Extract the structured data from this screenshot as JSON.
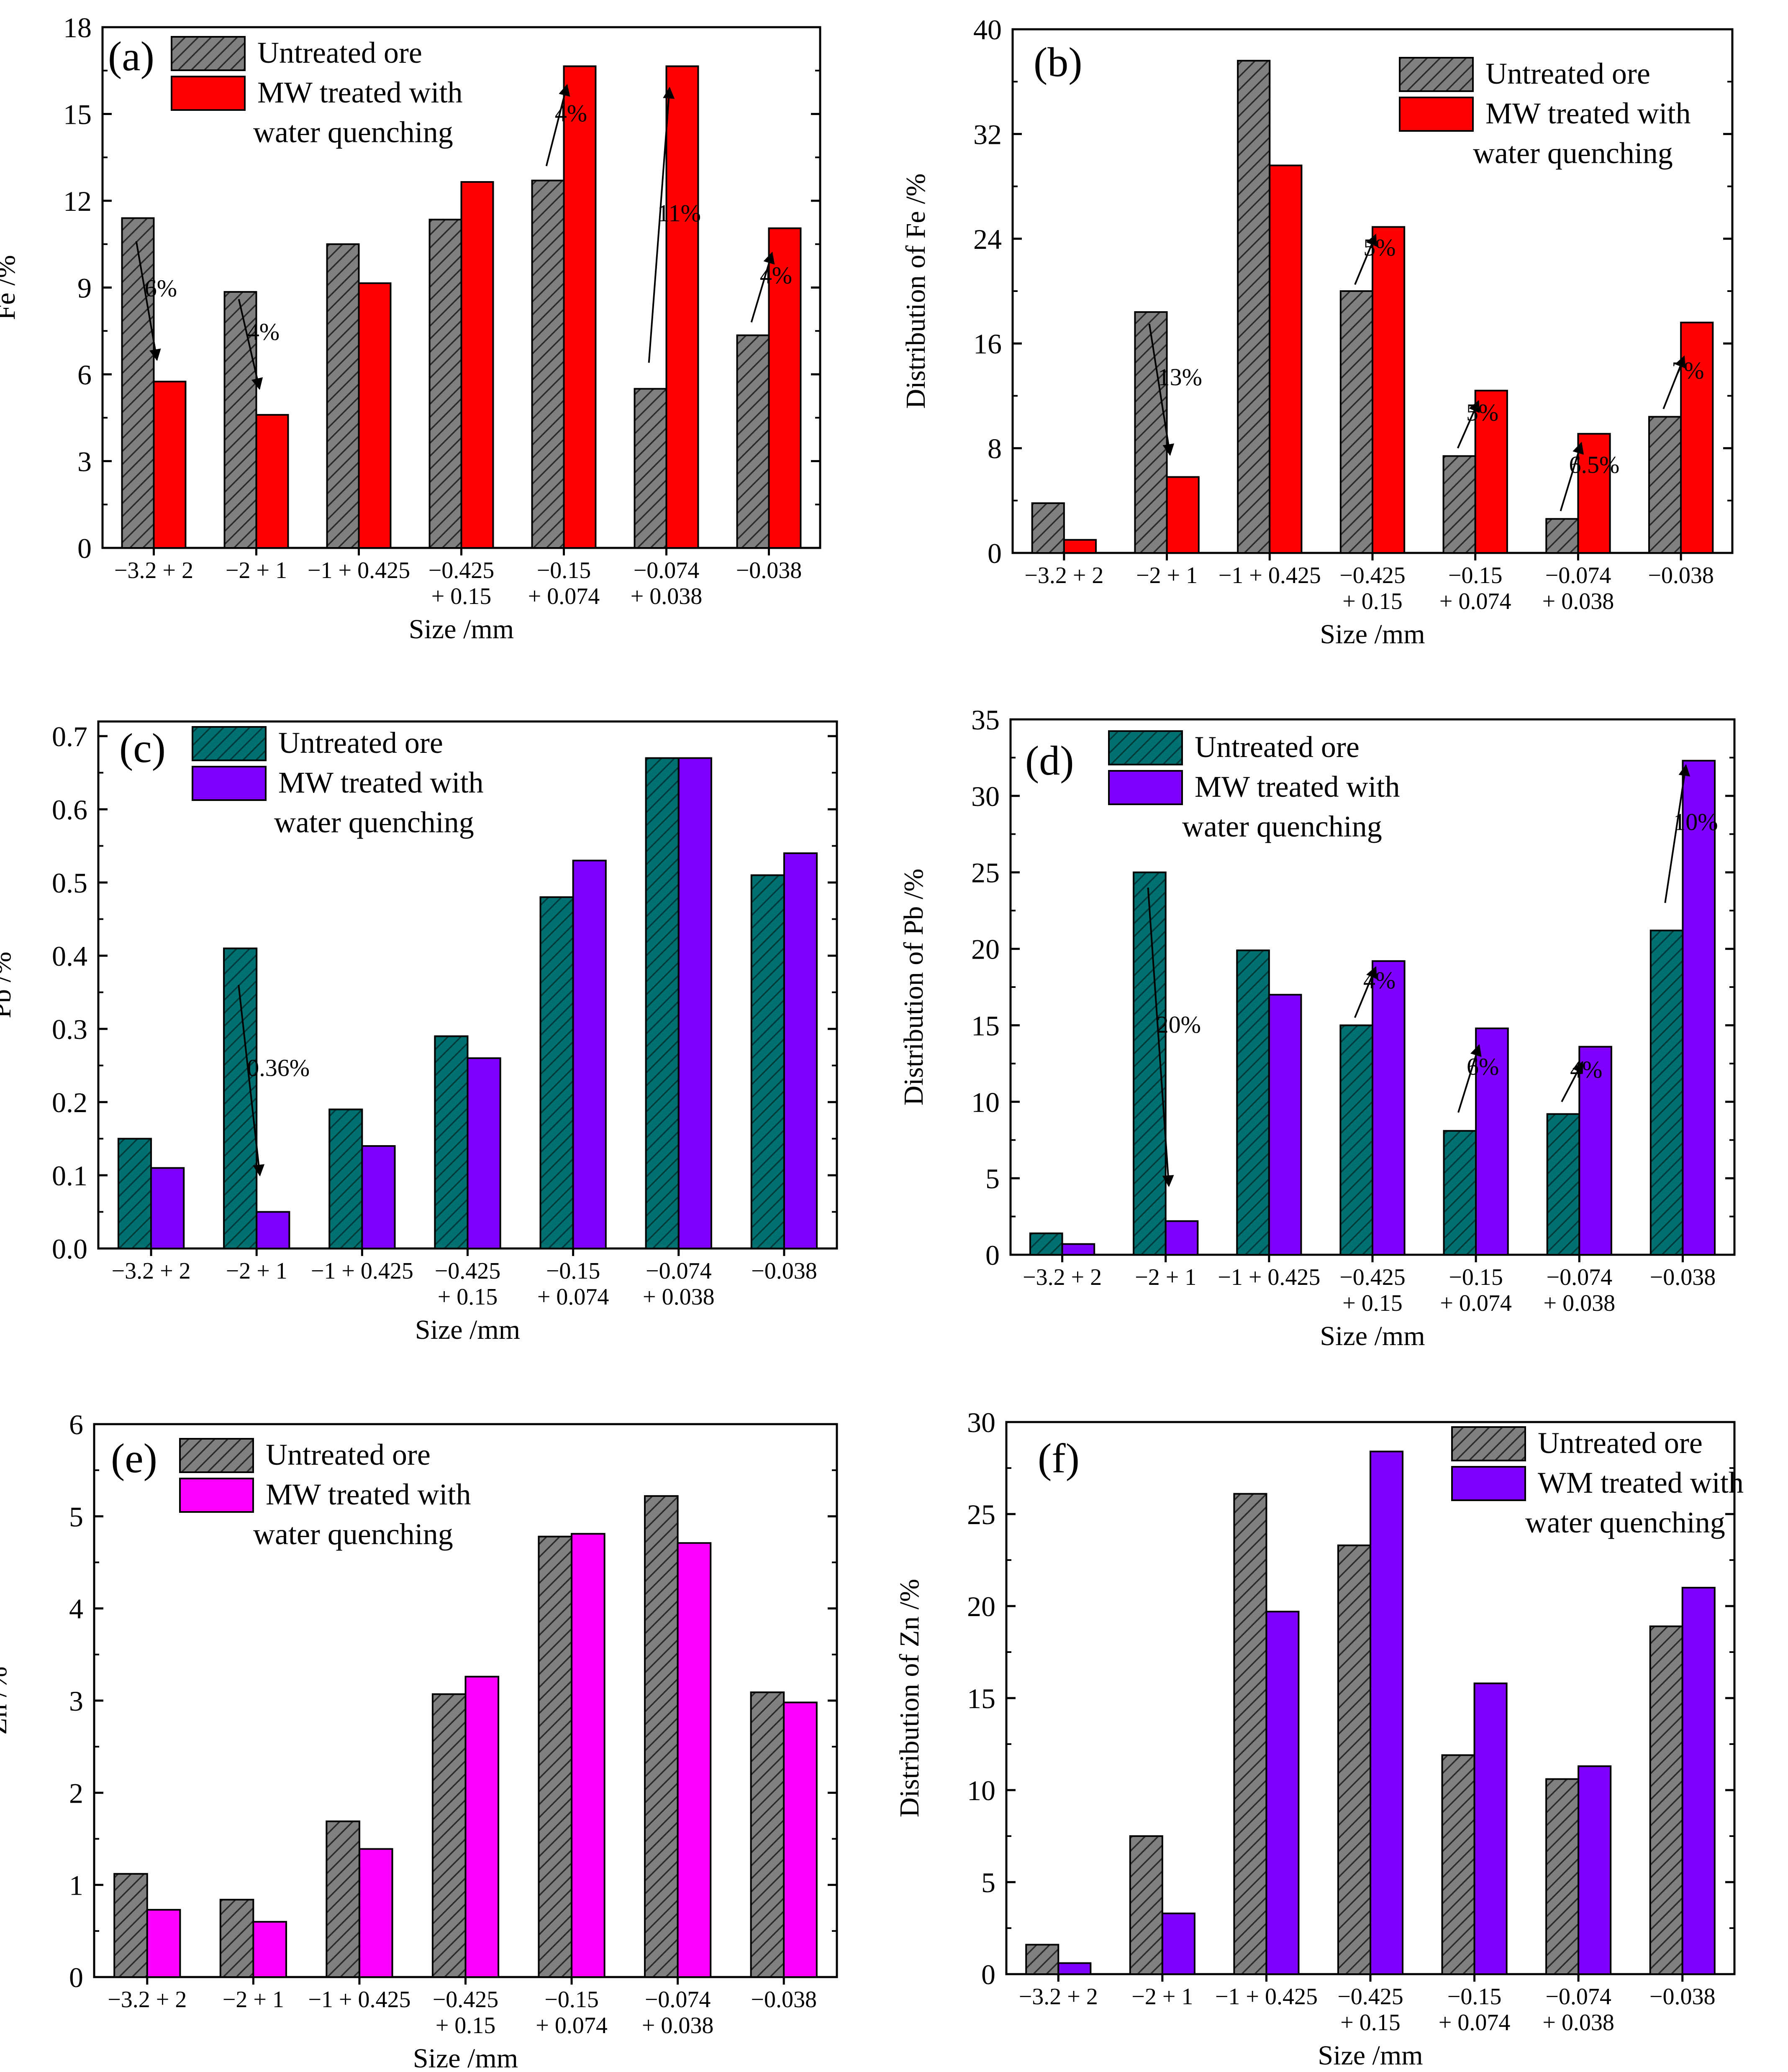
{
  "colors": {
    "gray_bar": "#808080",
    "red_bar": "#ff0000",
    "teal_bar": "#007070",
    "purple_bar": "#8000ff",
    "magenta_bar": "#ff00ff",
    "axis": "#000000"
  },
  "chart_data": [
    {
      "id": "a",
      "type": "bar",
      "panel_label": "(a)",
      "xlabel": "Size /mm",
      "ylabel": "Fe /%",
      "ylim": [
        0,
        18
      ],
      "yticks": [
        0,
        3,
        6,
        9,
        12,
        15,
        18
      ],
      "categories": [
        [
          "−3.2 + 2"
        ],
        [
          "−2 + 1"
        ],
        [
          "−1 + 0.425"
        ],
        [
          "−0.425",
          "+ 0.15"
        ],
        [
          "−0.15",
          "+ 0.074"
        ],
        [
          "−0.074",
          "+ 0.038"
        ],
        [
          "−0.038"
        ]
      ],
      "series": [
        {
          "name": "Untreated ore",
          "style": "hatch-gray",
          "values": [
            11.4,
            8.85,
            10.5,
            11.35,
            12.7,
            5.5,
            7.35
          ]
        },
        {
          "name": "MW treated with water quenching",
          "legend_lines": [
            "MW treated with",
            " water quenching"
          ],
          "style": "red",
          "values": [
            5.75,
            4.6,
            9.15,
            12.65,
            16.65,
            16.65,
            11.05
          ]
        }
      ],
      "annotations": [
        {
          "text": "6%",
          "category": 0,
          "from": 10.6,
          "to": 6.5
        },
        {
          "text": "4%",
          "category": 1,
          "from": 8.6,
          "to": 5.5
        },
        {
          "text": "4%",
          "category": 4,
          "from": 13.2,
          "to": 16.0
        },
        {
          "text": "11%",
          "category": 5,
          "from": 6.4,
          "to": 15.9
        },
        {
          "text": "4%",
          "category": 6,
          "from": 7.8,
          "to": 10.2
        }
      ]
    },
    {
      "id": "b",
      "type": "bar",
      "panel_label": "(b)",
      "xlabel": "Size /mm",
      "ylabel": "Distribution of Fe /%",
      "ylim": [
        0,
        40
      ],
      "yticks": [
        0,
        8,
        16,
        24,
        32,
        40
      ],
      "categories": [
        [
          "−3.2 + 2"
        ],
        [
          "−2 + 1"
        ],
        [
          "−1 + 0.425"
        ],
        [
          "−0.425",
          "+ 0.15"
        ],
        [
          "−0.15",
          "+ 0.074"
        ],
        [
          "−0.074",
          "+ 0.038"
        ],
        [
          "−0.038"
        ]
      ],
      "series": [
        {
          "name": "Untreated ore",
          "style": "hatch-gray",
          "values": [
            3.8,
            18.4,
            37.6,
            20.0,
            7.4,
            2.6,
            10.4
          ]
        },
        {
          "name": "MW treated with water quenching",
          "legend_lines": [
            "MW treated with",
            "water quenching"
          ],
          "style": "red",
          "values": [
            1.0,
            5.8,
            29.6,
            24.9,
            12.4,
            9.1,
            17.6
          ]
        }
      ],
      "annotations": [
        {
          "text": "13%",
          "category": 1,
          "from": 17.5,
          "to": 7.5
        },
        {
          "text": "5%",
          "category": 3,
          "from": 20.5,
          "to": 24.3
        },
        {
          "text": "5%",
          "category": 4,
          "from": 8.0,
          "to": 11.6
        },
        {
          "text": "6.5%",
          "category": 5,
          "from": 3.2,
          "to": 8.4
        },
        {
          "text": "7%",
          "category": 6,
          "from": 11.0,
          "to": 15.0
        }
      ]
    },
    {
      "id": "c",
      "type": "bar",
      "panel_label": "(c)",
      "xlabel": "Size /mm",
      "ylabel": "Pb /%",
      "ylim": [
        0,
        0.72
      ],
      "yticks": [
        0.0,
        0.1,
        0.2,
        0.3,
        0.4,
        0.5,
        0.6,
        0.7
      ],
      "tick_decimals": 1,
      "categories": [
        [
          "−3.2 + 2"
        ],
        [
          "−2 + 1"
        ],
        [
          "−1 + 0.425"
        ],
        [
          "−0.425",
          "+ 0.15"
        ],
        [
          "−0.15",
          "+ 0.074"
        ],
        [
          "−0.074",
          "+ 0.038"
        ],
        [
          "−0.038"
        ]
      ],
      "series": [
        {
          "name": "Untreated ore",
          "style": "hatch-teal",
          "values": [
            0.15,
            0.41,
            0.19,
            0.29,
            0.48,
            0.67,
            0.51
          ]
        },
        {
          "name": "MW treated with water quenching",
          "legend_lines": [
            "MW treated with",
            " water quenching"
          ],
          "style": "purple",
          "values": [
            0.11,
            0.05,
            0.14,
            0.26,
            0.53,
            0.67,
            0.54
          ]
        }
      ],
      "annotations": [
        {
          "text": "0.36%",
          "category": 1,
          "from": 0.36,
          "to": 0.1
        }
      ]
    },
    {
      "id": "d",
      "type": "bar",
      "panel_label": "(d)",
      "xlabel": "Size /mm",
      "ylabel": "Distribution of Pb /%",
      "ylim": [
        0,
        35
      ],
      "yticks": [
        0,
        5,
        10,
        15,
        20,
        25,
        30,
        35
      ],
      "categories": [
        [
          "−3.2 + 2"
        ],
        [
          "−2 + 1"
        ],
        [
          "−1 + 0.425"
        ],
        [
          "−0.425",
          "+ 0.15"
        ],
        [
          "−0.15",
          "+ 0.074"
        ],
        [
          "−0.074",
          "+ 0.038"
        ],
        [
          "−0.038"
        ]
      ],
      "series": [
        {
          "name": "Untreated ore",
          "style": "hatch-teal",
          "values": [
            1.4,
            25.0,
            19.9,
            15.0,
            8.1,
            9.2,
            21.2
          ]
        },
        {
          "name": "MW treated  with water quenching",
          "legend_lines": [
            "MW treated  with",
            "water quenching"
          ],
          "style": "purple",
          "values": [
            0.7,
            2.2,
            17.0,
            19.2,
            14.8,
            13.6,
            32.3
          ]
        }
      ],
      "annotations": [
        {
          "text": "20%",
          "category": 1,
          "from": 24.0,
          "to": 4.5
        },
        {
          "text": "4%",
          "category": 3,
          "from": 15.5,
          "to": 18.8
        },
        {
          "text": "6%",
          "category": 4,
          "from": 9.3,
          "to": 13.7
        },
        {
          "text": "4%",
          "category": 5,
          "from": 10.0,
          "to": 12.6
        },
        {
          "text": "10%",
          "category": 6,
          "from": 23.0,
          "to": 32.0
        }
      ]
    },
    {
      "id": "e",
      "type": "bar",
      "panel_label": "(e)",
      "xlabel": "Size /mm",
      "ylabel": "Zn /%",
      "ylim": [
        0,
        6
      ],
      "yticks": [
        0,
        1,
        2,
        3,
        4,
        5,
        6
      ],
      "categories": [
        [
          "−3.2 + 2"
        ],
        [
          "−2 + 1"
        ],
        [
          "−1 + 0.425"
        ],
        [
          "−0.425",
          "+ 0.15"
        ],
        [
          "−0.15",
          "+ 0.074"
        ],
        [
          "−0.074",
          "+ 0.038"
        ],
        [
          "−0.038"
        ]
      ],
      "series": [
        {
          "name": "Untreated ore",
          "style": "hatch-gray",
          "values": [
            1.12,
            0.84,
            1.69,
            3.07,
            4.78,
            5.22,
            3.09
          ]
        },
        {
          "name": "MW treated with water quenching",
          "legend_lines": [
            "MW treated with",
            "water quenching"
          ],
          "style": "magenta",
          "values": [
            0.73,
            0.6,
            1.39,
            3.26,
            4.81,
            4.71,
            2.98
          ]
        }
      ],
      "annotations": []
    },
    {
      "id": "f",
      "type": "bar",
      "panel_label": "(f)",
      "xlabel": "Size /mm",
      "ylabel": "Distribution of Zn /%",
      "ylim": [
        0,
        30
      ],
      "yticks": [
        0,
        5,
        10,
        15,
        20,
        25,
        30
      ],
      "categories": [
        [
          "−3.2 + 2"
        ],
        [
          "−2 + 1"
        ],
        [
          "−1 + 0.425"
        ],
        [
          "−0.425",
          "+ 0.15"
        ],
        [
          "−0.15",
          "+ 0.074"
        ],
        [
          "−0.074",
          "+ 0.038"
        ],
        [
          "−0.038"
        ]
      ],
      "series": [
        {
          "name": "Untreated ore",
          "style": "hatch-gray",
          "values": [
            1.6,
            7.5,
            26.1,
            23.3,
            11.9,
            10.6,
            18.9
          ]
        },
        {
          "name": "WM treated with water quenching",
          "legend_lines": [
            "WM treated with",
            "water quenching"
          ],
          "style": "purple",
          "values": [
            0.6,
            3.3,
            19.7,
            28.4,
            15.8,
            11.3,
            21.0
          ]
        }
      ],
      "annotations": []
    }
  ]
}
